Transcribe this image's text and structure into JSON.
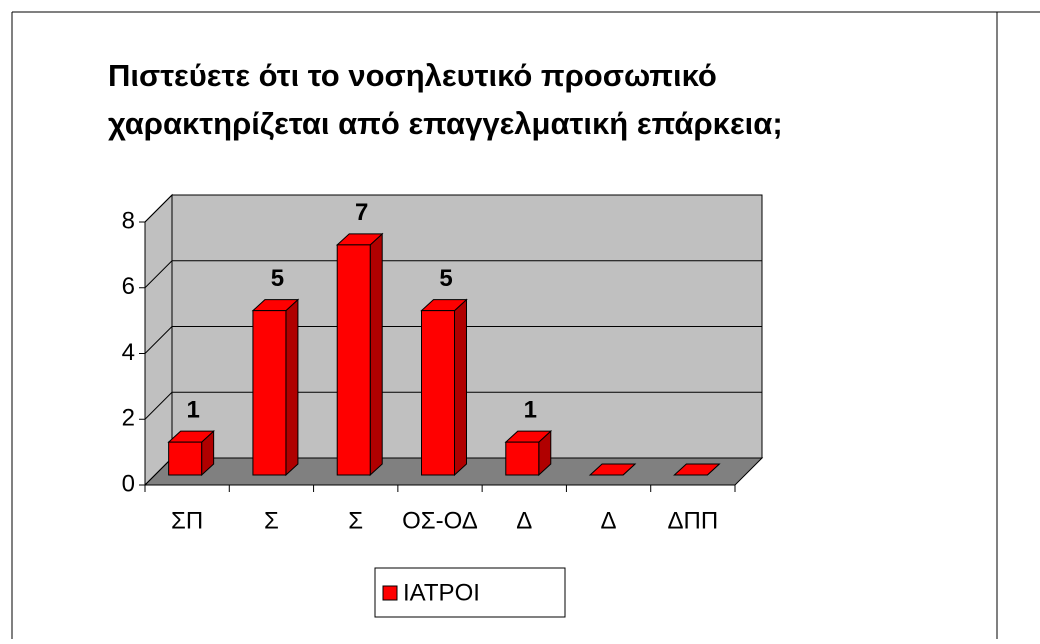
{
  "chart_data": {
    "type": "bar3d",
    "title": [
      "Πιστεύετε ότι το νοσηλευτικό προσωπικό",
      "χαρακτηρίζεται από επαγγελματική επάρκεια;"
    ],
    "categories": [
      "ΣΠ",
      "Σ",
      "Σ",
      "ΟΣ-ΟΔ",
      "Δ",
      "Δ",
      "ΔΠΠ"
    ],
    "series": [
      {
        "name": "ΙΑΤΡΟΙ",
        "color": "#ff0000",
        "values": [
          1,
          5,
          7,
          5,
          1,
          0,
          0
        ]
      }
    ],
    "ylim": [
      0,
      8
    ],
    "yticks": [
      0,
      2,
      4,
      6,
      8
    ],
    "grid": true,
    "legend": "bottom"
  }
}
